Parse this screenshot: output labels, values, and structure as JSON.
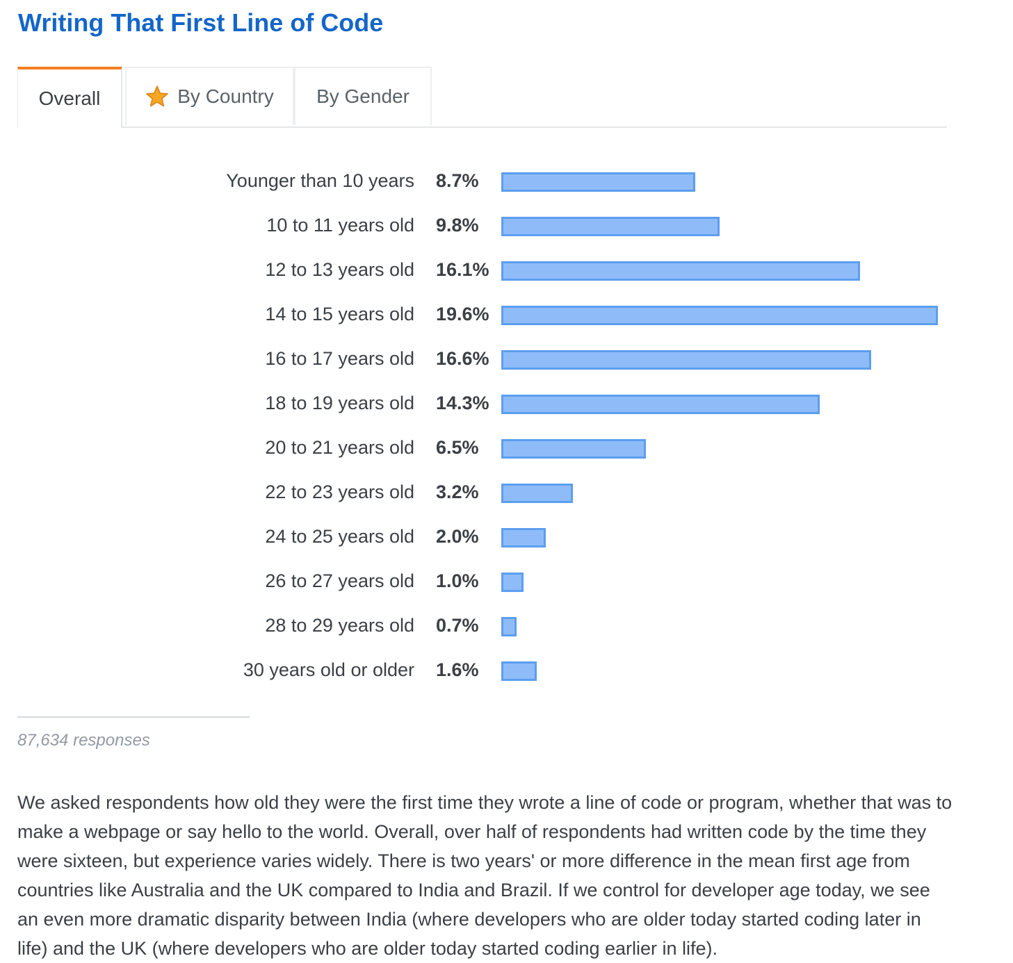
{
  "title": "Writing That First Line of Code",
  "tabs": [
    {
      "label": "Overall",
      "icon": "",
      "active": true
    },
    {
      "label": "By Country",
      "icon": "star-icon",
      "active": false
    },
    {
      "label": "By Gender",
      "icon": "",
      "active": false
    }
  ],
  "colors": {
    "title": "#1466c9",
    "active_tab": "#f48024",
    "bar_fill": "#8fbcf8",
    "bar_border": "#5c9ef0",
    "star": "#f5a623"
  },
  "chart_data": {
    "type": "bar",
    "orientation": "horizontal",
    "categories": [
      "Younger than 10 years",
      "10 to 11 years old",
      "12 to 13 years old",
      "14 to 15 years old",
      "16 to 17 years old",
      "18 to 19 years old",
      "20 to 21 years old",
      "22 to 23 years old",
      "24 to 25 years old",
      "26 to 27 years old",
      "28 to 29 years old",
      "30 years old or older"
    ],
    "values": [
      8.7,
      9.8,
      16.1,
      19.6,
      16.6,
      14.3,
      6.5,
      3.2,
      2.0,
      1.0,
      0.7,
      1.6
    ],
    "value_labels": [
      "8.7%",
      "9.8%",
      "16.1%",
      "19.6%",
      "16.6%",
      "14.3%",
      "6.5%",
      "3.2%",
      "2.0%",
      "1.0%",
      "0.7%",
      "1.6%"
    ],
    "unit": "%",
    "grid": false,
    "legend": "none"
  },
  "responses": "87,634 responses",
  "description": "We asked respondents how old they were the first time they wrote a line of code or program, whether that was to make a webpage or say hello to the world. Overall, over half of respondents had written code by the time they were sixteen, but experience varies widely. There is two years' or more difference in the mean first age from countries like Australia and the UK compared to India and Brazil. If we control for developer age today, we see an even more dramatic disparity between India (where developers who are older today started coding later in life) and the UK (where developers who are older today started coding earlier in life)."
}
